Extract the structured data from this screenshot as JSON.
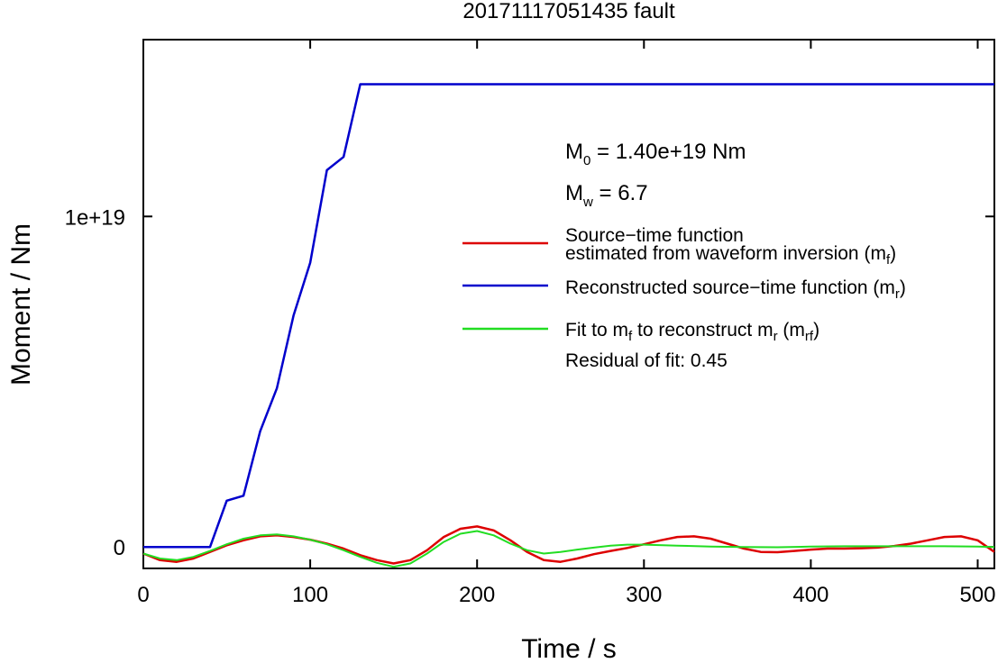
{
  "chart_data": {
    "type": "line",
    "title": "20171117051435 fault",
    "xlabel": "Time / s",
    "ylabel": "Moment / Nm",
    "xlim": [
      0,
      510
    ],
    "ylim": [
      -6.5e+17,
      1.535e+19
    ],
    "xticks": [
      0,
      100,
      200,
      300,
      400,
      500
    ],
    "xtick_labels": [
      "0",
      "100",
      "200",
      "300",
      "400",
      "500"
    ],
    "yticks": [
      0,
      1e+19
    ],
    "ytick_labels": [
      "0",
      "1e+19"
    ],
    "grid": false,
    "legend_position": "right",
    "annotations": {
      "m0": {
        "base": "M",
        "sub": "0",
        "text": " = 1.40e+19 Nm"
      },
      "mw": {
        "base": "M",
        "sub": "w",
        "text": " = 6.7"
      },
      "residual": "Residual of fit: 0.45"
    },
    "series": [
      {
        "name": "Source−time function estimated from waveform inversion (m_f)",
        "color": "#dd0000",
        "x": [
          0,
          10,
          20,
          30,
          40,
          50,
          60,
          70,
          80,
          90,
          100,
          110,
          120,
          130,
          140,
          150,
          160,
          170,
          180,
          190,
          200,
          210,
          220,
          230,
          240,
          250,
          260,
          270,
          280,
          290,
          300,
          310,
          320,
          330,
          340,
          350,
          360,
          370,
          380,
          390,
          400,
          410,
          420,
          430,
          440,
          450,
          460,
          470,
          480,
          490,
          500,
          510
        ],
        "y": [
          -2e+17,
          -4e+17,
          -4.5e+17,
          -3.5e+17,
          -1.5e+17,
          5e+16,
          2e+17,
          3.2e+17,
          3.5e+17,
          3e+17,
          2.2e+17,
          1e+17,
          -5e+16,
          -2.5e+17,
          -4e+17,
          -5e+17,
          -4e+17,
          -1e+17,
          3e+17,
          5.5e+17,
          6.2e+17,
          5e+17,
          2e+17,
          -1.5e+17,
          -4e+17,
          -4.5e+17,
          -3.5e+17,
          -2.2e+17,
          -1.2e+17,
          -3e+16,
          8e+16,
          2e+17,
          3e+17,
          3.2e+17,
          2.5e+17,
          1e+17,
          -5e+16,
          -1.5e+17,
          -1.6e+17,
          -1.2e+17,
          -8e+16,
          -5e+16,
          -5e+16,
          -4e+16,
          -2e+16,
          3e+16,
          1e+17,
          2e+17,
          3e+17,
          3.2e+17,
          2e+17,
          -1.5e+17
        ]
      },
      {
        "name": "Reconstructed source−time function (m_r)",
        "color": "#0000cc",
        "x": [
          0,
          40,
          50,
          60,
          70,
          80,
          90,
          100,
          110,
          120,
          130,
          510
        ],
        "y": [
          0,
          0,
          1.4e+18,
          1.55e+18,
          3.5e+18,
          4.8e+18,
          7e+18,
          8.6e+18,
          1.14e+19,
          1.18e+19,
          1.4e+19,
          1.4e+19
        ]
      },
      {
        "name": "Fit to m_f to reconstruct m_r (m_rf)",
        "color": "#22dd22",
        "x": [
          0,
          10,
          20,
          30,
          40,
          50,
          60,
          70,
          80,
          90,
          100,
          110,
          120,
          130,
          140,
          150,
          160,
          170,
          180,
          190,
          200,
          210,
          220,
          230,
          240,
          250,
          260,
          270,
          280,
          290,
          300,
          320,
          340,
          360,
          380,
          400,
          420,
          440,
          460,
          480,
          500,
          510
        ],
        "y": [
          -2e+17,
          -3.5e+17,
          -4e+17,
          -3e+17,
          -1.2e+17,
          8e+16,
          2.5e+17,
          3.5e+17,
          3.8e+17,
          3.2e+17,
          2.2e+17,
          8e+16,
          -1e+17,
          -3e+17,
          -4.8e+17,
          -6e+17,
          -5e+17,
          -2e+17,
          1.5e+17,
          4e+17,
          4.8e+17,
          3.5e+17,
          1e+17,
          -1e+17,
          -2e+17,
          -1.5e+17,
          -8e+16,
          -2e+16,
          4e+16,
          7e+16,
          7e+16,
          4e+16,
          1e+16,
          0,
          -1e+16,
          1e+16,
          2e+16,
          2e+16,
          2e+16,
          2e+16,
          1e+16,
          0
        ]
      }
    ],
    "legend": [
      {
        "line1": "Source−time function",
        "line2": "estimated from waveform inversion (m",
        "sub2": "f",
        "tail2": ")"
      },
      {
        "line1": "Reconstructed source−time function (m",
        "sub1": "r",
        "tail1": ")"
      },
      {
        "line1": "Fit to m",
        "sub1": "f",
        "mid1": " to reconstruct m",
        "sub1b": "r",
        "mid1b": " (m",
        "sub1c": "rf",
        "tail1": ")"
      }
    ]
  }
}
